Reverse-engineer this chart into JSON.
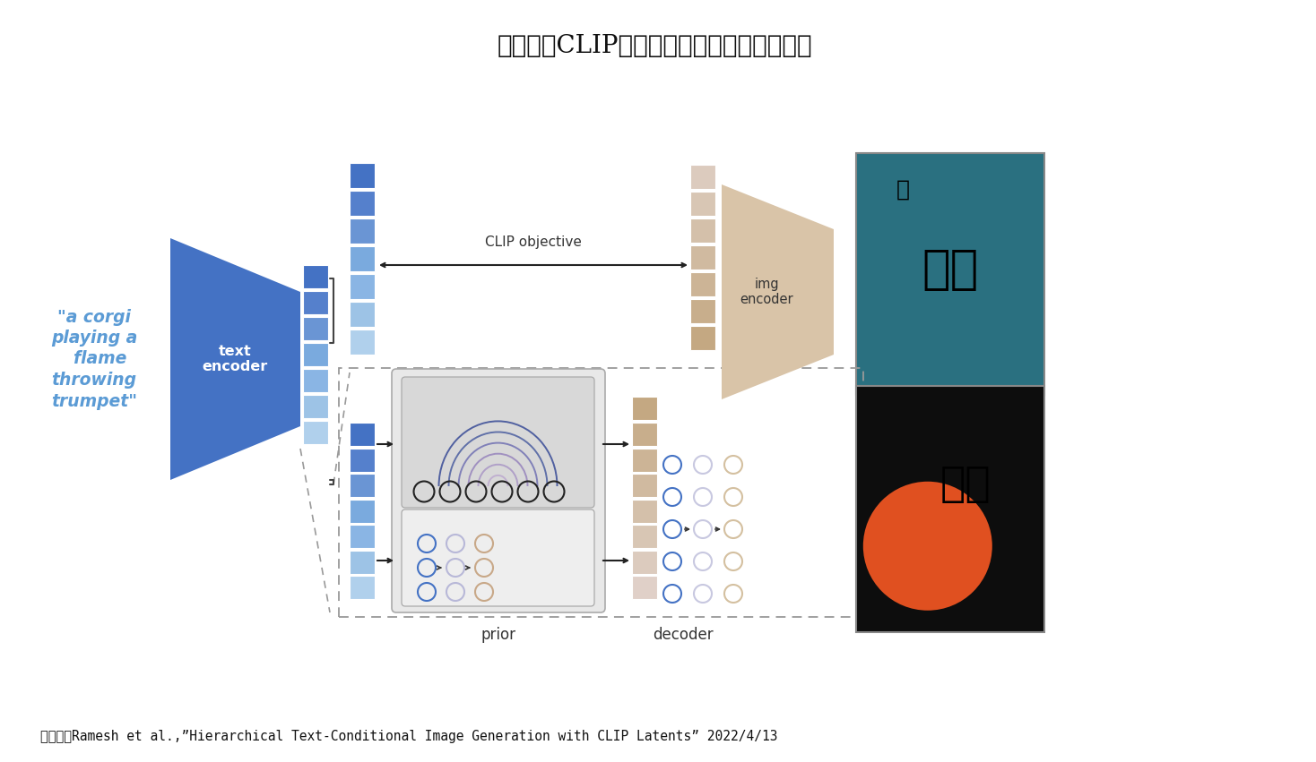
{
  "title": "図表３　CLIPモデルによる画像生成の流れ",
  "title_fontsize": 20,
  "caption": "（資料）Ramesh et al.,”Hierarchical Text-Conditional Image Generation with CLIP Latents” 2022/4/13",
  "caption_fontsize": 10.5,
  "bg_color": "#ffffff",
  "text_query": "\"a corgi\nplaying a\n  flame\nthrowing\ntrumpet\"",
  "text_query_color": "#5b9bd5",
  "text_encoder_label": "text\nencoder",
  "img_encoder_label": "img\nencoder",
  "prior_label": "prior",
  "decoder_label": "decoder",
  "clip_objective_label": "CLIP objective",
  "blue_dark": "#3a5fa0",
  "blue_mid": "#4472c4",
  "blue_light": "#7aabdd",
  "blue_pale": "#a8c8e8",
  "blue_very_pale": "#c8dff0",
  "mauve_dark": "#b09070",
  "mauve_mid": "#c4a882",
  "mauve_light": "#d9c4a8",
  "mauve_pale": "#e8d8c0",
  "purple_mid": "#9090c0",
  "purple_light": "#b8b8d8",
  "gray_box": "#e0e0e0",
  "gray_box2": "#ececec",
  "gray_border": "#aaaaaa",
  "arrow_color": "#222222",
  "dashed_color": "#999999",
  "cell_grad_blue": [
    "#4472c4",
    "#5580cc",
    "#6a95d4",
    "#7aaade",
    "#8ab5e4",
    "#9dc3e6",
    "#b0d0ec"
  ],
  "cell_grad_mauve": [
    "#c4a882",
    "#c8ae8c",
    "#ccb496",
    "#d0baa0",
    "#d4c0aa",
    "#d8c6b4",
    "#dccbbe"
  ],
  "cell_grad_mauve2": [
    "#c4a882",
    "#c8ae8c",
    "#ccb496",
    "#d0baa0",
    "#d4c0aa",
    "#d8c6b4",
    "#dccbbe",
    "#e0d0c8"
  ]
}
